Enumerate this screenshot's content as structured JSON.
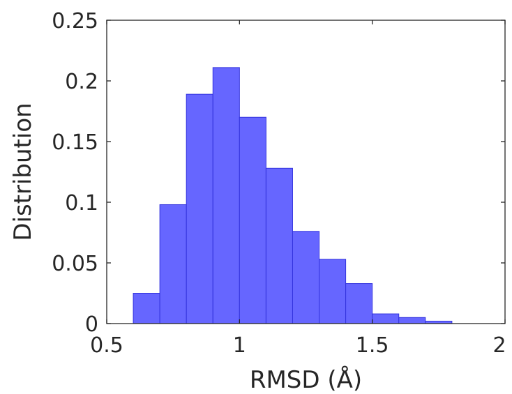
{
  "chart_data": {
    "type": "bar",
    "title": "",
    "xlabel": "RMSD (Å)",
    "ylabel": "Distribution",
    "xlim": [
      0.5,
      2
    ],
    "ylim": [
      0,
      0.25
    ],
    "xticks": [
      0.5,
      1,
      1.5,
      2
    ],
    "xtick_labels": [
      "0.5",
      "1",
      "1.5",
      "2"
    ],
    "yticks": [
      0,
      0.05,
      0.1,
      0.15,
      0.2,
      0.25
    ],
    "ytick_labels": [
      "0",
      "0.05",
      "0.1",
      "0.15",
      "0.2",
      "0.25"
    ],
    "grid": false,
    "bar_color": "#6666ff",
    "edge_color": "#3333dd",
    "bins": [
      {
        "x0": 0.6,
        "x1": 0.7,
        "value": 0.025
      },
      {
        "x0": 0.7,
        "x1": 0.8,
        "value": 0.098
      },
      {
        "x0": 0.8,
        "x1": 0.9,
        "value": 0.189
      },
      {
        "x0": 0.9,
        "x1": 1.0,
        "value": 0.211
      },
      {
        "x0": 1.0,
        "x1": 1.1,
        "value": 0.17
      },
      {
        "x0": 1.1,
        "x1": 1.2,
        "value": 0.128
      },
      {
        "x0": 1.2,
        "x1": 1.3,
        "value": 0.076
      },
      {
        "x0": 1.3,
        "x1": 1.4,
        "value": 0.053
      },
      {
        "x0": 1.4,
        "x1": 1.5,
        "value": 0.033
      },
      {
        "x0": 1.5,
        "x1": 1.6,
        "value": 0.008
      },
      {
        "x0": 1.6,
        "x1": 1.7,
        "value": 0.005
      },
      {
        "x0": 1.7,
        "x1": 1.8,
        "value": 0.002
      }
    ]
  }
}
